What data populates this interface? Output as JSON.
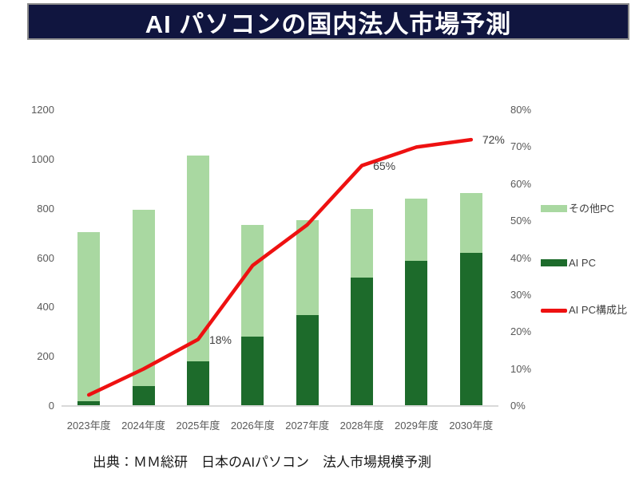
{
  "title": "AI パソコンの国内法人市場予測",
  "source": "出典：ＭＭ総研　日本のAIパソコン　法人市場規模予測",
  "colors": {
    "title_bg": "#10153f",
    "title_text": "#ffffff",
    "title_border": "#8c8c8c",
    "other_pc": "#a9d8a1",
    "ai_pc": "#1d6b2b",
    "ratio_line": "#ee1111",
    "axis_text": "#595959",
    "annotation_text": "#404040",
    "baseline": "#d9d9d9"
  },
  "chart_data": {
    "type": "bar",
    "subtype": "stacked-bar-with-line",
    "title": "AI パソコンの国内法人市場予測",
    "categories": [
      "2023年度",
      "2024年度",
      "2025年度",
      "2026年度",
      "2027年度",
      "2028年度",
      "2029年度",
      "2030年度"
    ],
    "totals": [
      705,
      795,
      1015,
      735,
      755,
      800,
      840,
      865
    ],
    "series": [
      {
        "name": "AI PC",
        "type": "bar",
        "stack": "pc",
        "position": "bottom",
        "color_key": "ai_pc",
        "values": [
          20,
          80,
          180,
          280,
          370,
          520,
          590,
          620
        ]
      },
      {
        "name": "その他PC",
        "type": "bar",
        "stack": "pc",
        "position": "top",
        "color_key": "other_pc",
        "values": [
          685,
          715,
          835,
          455,
          385,
          280,
          250,
          245
        ]
      },
      {
        "name": "AI PC構成比",
        "type": "line",
        "axis": "right",
        "color_key": "ratio_line",
        "values": [
          3,
          10,
          18,
          38,
          49,
          65,
          70,
          72
        ]
      }
    ],
    "left_axis": {
      "min": 0,
      "max": 1200,
      "step": 200,
      "ticks": [
        "0",
        "200",
        "400",
        "600",
        "800",
        "1000",
        "1200"
      ]
    },
    "right_axis": {
      "min": 0,
      "max": 80,
      "step": 10,
      "ticks": [
        "0%",
        "10%",
        "20%",
        "30%",
        "40%",
        "50%",
        "60%",
        "70%",
        "80%"
      ]
    },
    "annotations": [
      {
        "series": "AI PC構成比",
        "category_index": 2,
        "text": "18%"
      },
      {
        "series": "AI PC構成比",
        "category_index": 5,
        "text": "65%"
      },
      {
        "series": "AI PC構成比",
        "category_index": 7,
        "text": "72%"
      }
    ],
    "legend": [
      {
        "label": "その他PC",
        "marker": "box",
        "color_key": "other_pc"
      },
      {
        "label": "AI PC",
        "marker": "box",
        "color_key": "ai_pc"
      },
      {
        "label": "AI PC構成比",
        "marker": "line",
        "color_key": "ratio_line"
      }
    ],
    "grid": false,
    "legend_position": "right"
  }
}
